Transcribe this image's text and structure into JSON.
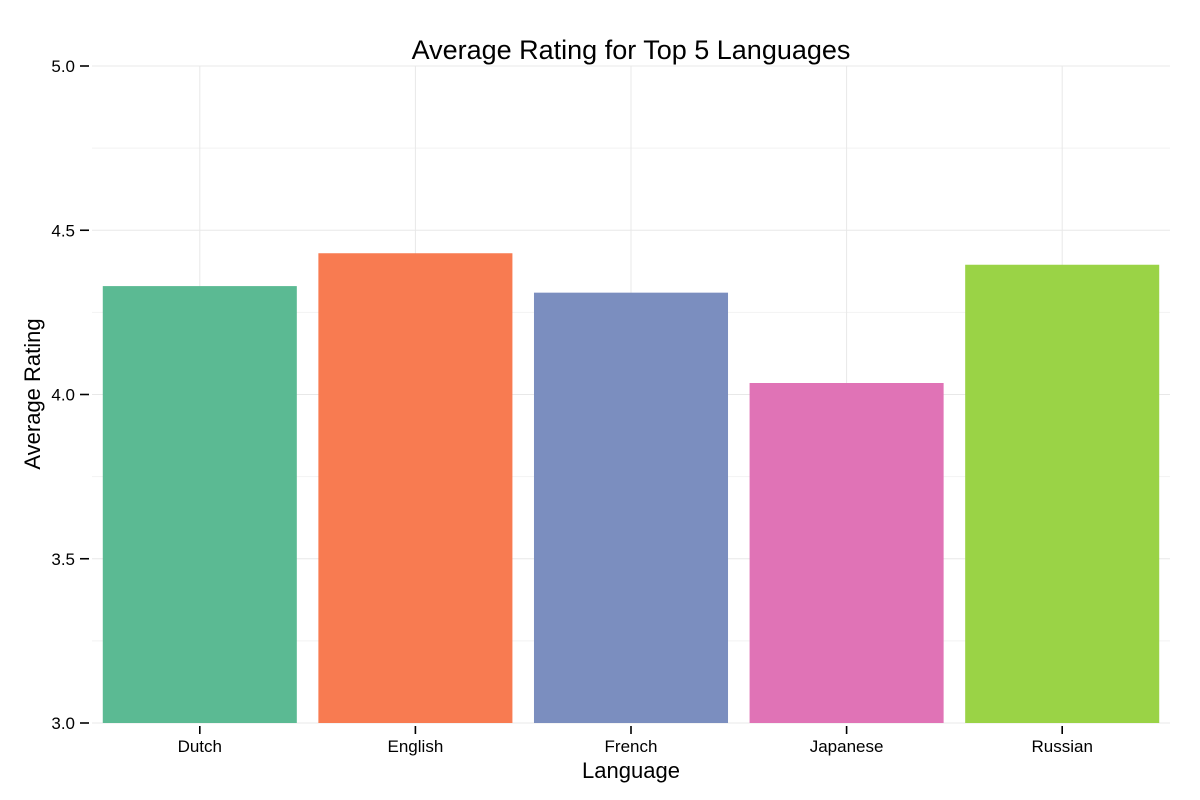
{
  "chart_data": {
    "type": "bar",
    "title": "Average Rating for Top 5 Languages",
    "xlabel": "Language",
    "ylabel": "Average Rating",
    "categories": [
      "Dutch",
      "English",
      "French",
      "Japanese",
      "Russian"
    ],
    "values": [
      4.33,
      4.43,
      4.31,
      4.035,
      4.395
    ],
    "colors": [
      "#5bba93",
      "#f87b51",
      "#7b8ebf",
      "#e073b6",
      "#9ad346"
    ],
    "ylim": [
      3.0,
      5.0
    ],
    "yticks": [
      "3.0",
      "3.5",
      "4.0",
      "4.5",
      "5.0"
    ],
    "grid": true,
    "legend": "none"
  }
}
